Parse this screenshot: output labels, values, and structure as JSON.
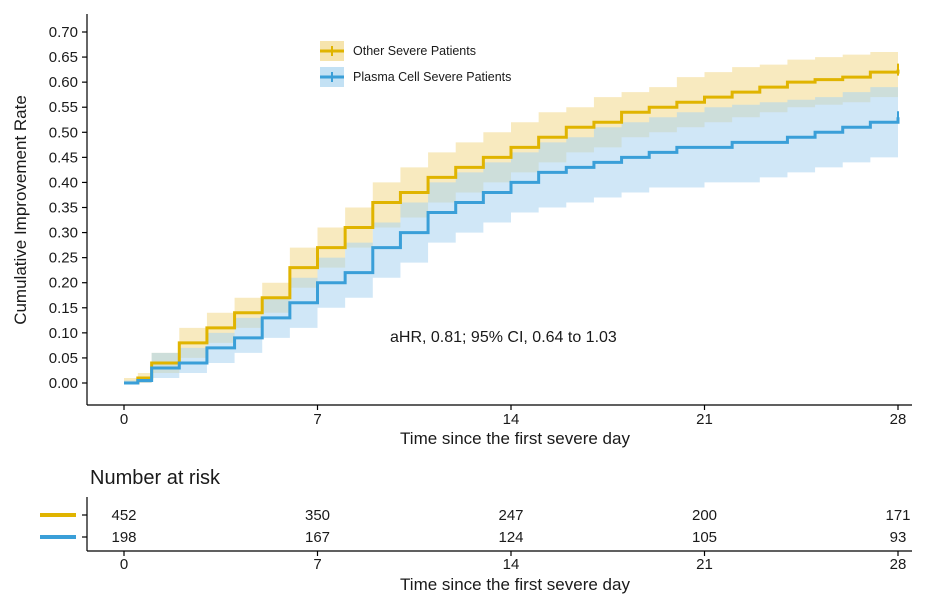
{
  "chart_data": [
    {
      "type": "line",
      "subtype": "kaplan-meier-step",
      "title": "",
      "xlabel": "Time since the first severe day",
      "ylabel": "Cumulative Improvement Rate",
      "xlim": [
        0,
        28
      ],
      "ylim": [
        0,
        0.7
      ],
      "x_ticks": [
        "0",
        "7",
        "14",
        "21",
        "28"
      ],
      "y_ticks": [
        "0.00",
        "0.05",
        "0.10",
        "0.15",
        "0.20",
        "0.25",
        "0.30",
        "0.35",
        "0.40",
        "0.45",
        "0.50",
        "0.55",
        "0.60",
        "0.65",
        "0.70"
      ],
      "grid": false,
      "legend_position": "top-center",
      "annotation": "aHR, 0.81; 95% CI, 0.64 to 1.03",
      "series": [
        {
          "name": "Other Severe Patients",
          "color": "#E0B400",
          "band_color": "#F2D98A",
          "x": [
            0,
            0.5,
            1,
            2,
            3,
            4,
            5,
            6,
            7,
            8,
            9,
            10,
            11,
            12,
            13,
            14,
            15,
            16,
            17,
            18,
            19,
            20,
            21,
            22,
            23,
            24,
            25,
            26,
            27,
            28
          ],
          "y": [
            0,
            0.01,
            0.04,
            0.08,
            0.11,
            0.14,
            0.17,
            0.23,
            0.27,
            0.31,
            0.36,
            0.38,
            0.41,
            0.43,
            0.45,
            0.47,
            0.49,
            0.51,
            0.52,
            0.54,
            0.55,
            0.56,
            0.57,
            0.58,
            0.59,
            0.6,
            0.605,
            0.61,
            0.62,
            0.625
          ],
          "lower": [
            0,
            0.0,
            0.02,
            0.05,
            0.08,
            0.11,
            0.14,
            0.19,
            0.23,
            0.27,
            0.31,
            0.33,
            0.36,
            0.38,
            0.4,
            0.42,
            0.44,
            0.46,
            0.47,
            0.49,
            0.5,
            0.51,
            0.52,
            0.53,
            0.54,
            0.55,
            0.555,
            0.56,
            0.57,
            0.58
          ],
          "upper": [
            0.01,
            0.02,
            0.06,
            0.11,
            0.14,
            0.17,
            0.2,
            0.27,
            0.31,
            0.35,
            0.4,
            0.43,
            0.46,
            0.48,
            0.5,
            0.52,
            0.54,
            0.55,
            0.57,
            0.58,
            0.59,
            0.61,
            0.62,
            0.63,
            0.635,
            0.645,
            0.65,
            0.655,
            0.66,
            0.665
          ]
        },
        {
          "name": "Plasma Cell Severe Patients",
          "color": "#3A9FD8",
          "band_color": "#A9D4F0",
          "x": [
            0,
            0.5,
            1,
            2,
            3,
            4,
            5,
            6,
            7,
            8,
            9,
            10,
            11,
            12,
            13,
            14,
            15,
            16,
            17,
            18,
            19,
            20,
            21,
            22,
            23,
            24,
            25,
            26,
            27,
            28
          ],
          "y": [
            0,
            0.005,
            0.03,
            0.04,
            0.07,
            0.09,
            0.13,
            0.16,
            0.2,
            0.22,
            0.27,
            0.3,
            0.34,
            0.36,
            0.38,
            0.4,
            0.42,
            0.43,
            0.44,
            0.45,
            0.46,
            0.47,
            0.47,
            0.48,
            0.48,
            0.49,
            0.5,
            0.51,
            0.52,
            0.53
          ],
          "lower": [
            0,
            0.0,
            0.01,
            0.02,
            0.04,
            0.06,
            0.09,
            0.11,
            0.15,
            0.17,
            0.21,
            0.24,
            0.28,
            0.3,
            0.32,
            0.34,
            0.35,
            0.36,
            0.37,
            0.38,
            0.39,
            0.39,
            0.4,
            0.4,
            0.41,
            0.42,
            0.43,
            0.44,
            0.45,
            0.46
          ],
          "upper": [
            0.005,
            0.01,
            0.06,
            0.07,
            0.1,
            0.13,
            0.17,
            0.21,
            0.25,
            0.28,
            0.32,
            0.36,
            0.4,
            0.42,
            0.44,
            0.46,
            0.48,
            0.49,
            0.51,
            0.52,
            0.53,
            0.54,
            0.55,
            0.555,
            0.56,
            0.565,
            0.57,
            0.58,
            0.59,
            0.6
          ]
        }
      ]
    },
    {
      "type": "table",
      "title": "Number at risk",
      "xlabel": "Time since the first severe day",
      "x_ticks": [
        "0",
        "7",
        "14",
        "21",
        "28"
      ],
      "rows": [
        {
          "color": "#E0B400",
          "values": [
            "452",
            "350",
            "247",
            "200",
            "171"
          ]
        },
        {
          "color": "#3A9FD8",
          "values": [
            "198",
            "167",
            "124",
            "105",
            "93"
          ]
        }
      ]
    }
  ]
}
